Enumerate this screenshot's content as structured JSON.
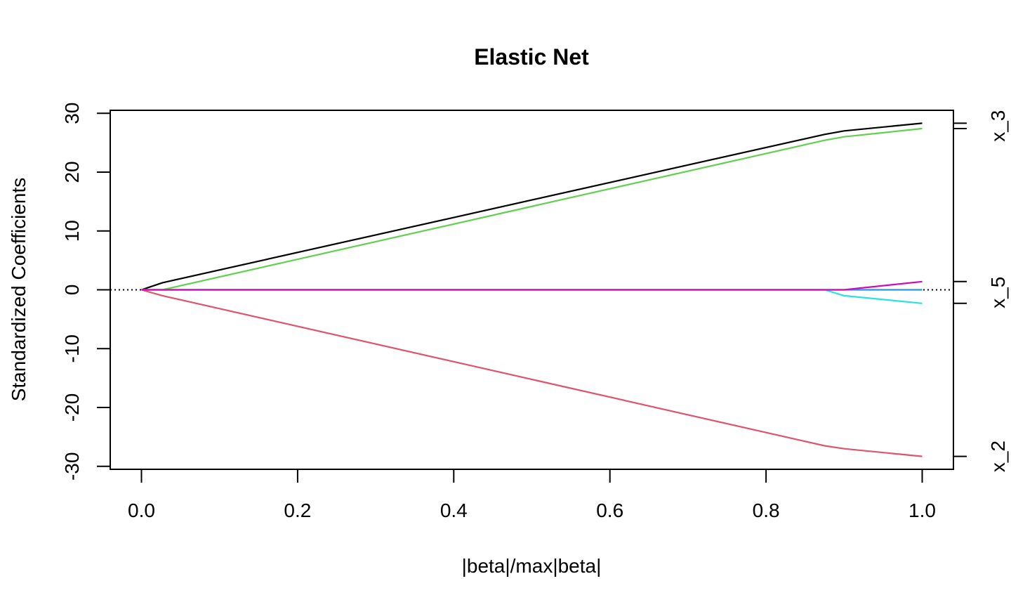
{
  "chart_data": {
    "type": "line",
    "title": "Elastic Net",
    "xlabel": "|beta|/max|beta|",
    "ylabel": "Standardized Coefficients",
    "xlim": [
      -0.04,
      1.04
    ],
    "ylim": [
      -30.5,
      30.5
    ],
    "x_ticks": [
      "0.0",
      "0.2",
      "0.4",
      "0.6",
      "0.8",
      "1.0"
    ],
    "y_ticks": [
      "-30",
      "-20",
      "-10",
      "0",
      "10",
      "20",
      "30"
    ],
    "right_axis_labels": [
      "x_3",
      "x_5",
      "x_2"
    ],
    "zero_line": true,
    "grid": false,
    "series": [
      {
        "color": "#000000",
        "x": [
          0.0,
          0.027,
          0.875,
          0.9,
          1.0
        ],
        "y": [
          0.0,
          1.2,
          26.4,
          27.0,
          28.3
        ]
      },
      {
        "color": "#DF536B",
        "x": [
          0.0,
          0.027,
          0.875,
          0.9,
          1.0
        ],
        "y": [
          0.0,
          -1.0,
          -26.5,
          -27.0,
          -28.3
        ]
      },
      {
        "color": "#61D04F",
        "x": [
          0.0,
          0.027,
          0.875,
          0.9,
          1.0
        ],
        "y": [
          0.0,
          0.0,
          25.4,
          26.0,
          27.4
        ]
      },
      {
        "color": "#2297E6",
        "x": [
          0.0,
          0.027,
          0.875,
          0.9,
          1.0
        ],
        "y": [
          0.0,
          0.0,
          0.0,
          0.0,
          0.0
        ]
      },
      {
        "color": "#28E2E5",
        "x": [
          0.0,
          0.027,
          0.875,
          0.9,
          1.0
        ],
        "y": [
          0.0,
          0.0,
          0.0,
          -1.0,
          -2.3
        ]
      },
      {
        "color": "#CD0BBC",
        "x": [
          0.0,
          0.027,
          0.875,
          0.9,
          1.0
        ],
        "y": [
          0.0,
          0.0,
          0.0,
          0.0,
          1.4
        ]
      }
    ],
    "right_axis_ticks": [
      28.3,
      27.4,
      1.4,
      -2.3,
      -28.3
    ]
  }
}
